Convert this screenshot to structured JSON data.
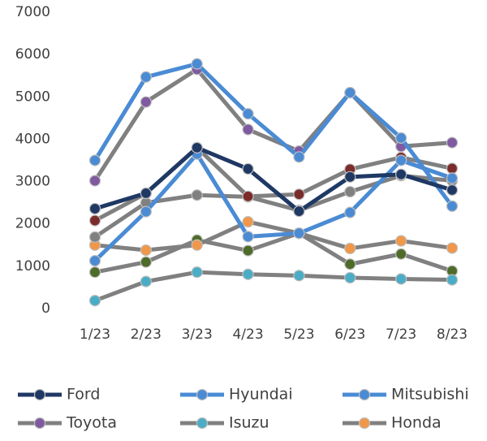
{
  "chart_data": {
    "type": "line",
    "categories": [
      "1/23",
      "2/23",
      "3/23",
      "4/23",
      "5/23",
      "6/23",
      "7/23",
      "8/23"
    ],
    "ylim": [
      0,
      7000
    ],
    "yticks": [
      0,
      1000,
      2000,
      3000,
      4000,
      5000,
      6000,
      7000
    ],
    "grid": false,
    "legend": "bottom",
    "series": [
      {
        "color": "#808080",
        "marker_color": "#4e6b2a",
        "values": [
          860,
          1100,
          1620,
          1370,
          1780,
          1050,
          1290,
          890
        ]
      },
      {
        "name": "Isuzu",
        "color": "#808080",
        "marker_color": "#4bacc6",
        "values": [
          190,
          640,
          860,
          810,
          780,
          730,
          700,
          680
        ]
      },
      {
        "name": "Honda",
        "color": "#808080",
        "marker_color": "#f0974a",
        "values": [
          1500,
          1380,
          1500,
          2050,
          1780,
          1420,
          1600,
          1430
        ]
      },
      {
        "color": "#808080",
        "marker_color": "#808080",
        "values": [
          1690,
          2500,
          2680,
          2640,
          2320,
          2760,
          3140,
          3020
        ]
      },
      {
        "color": "#808080",
        "marker_color": "#7b2c2a",
        "values": [
          2080,
          2720,
          3800,
          2650,
          2700,
          3290,
          3570,
          3310
        ]
      },
      {
        "name": "Toyota",
        "color": "#808080",
        "marker_color": "#7f5aa0",
        "values": [
          3020,
          4880,
          5650,
          4230,
          3720,
          5100,
          3830,
          3920
        ]
      },
      {
        "name": "Mitsubishi",
        "color": "#4a8bd4",
        "marker_color": "#4a8bd4",
        "values": [
          1130,
          2290,
          3650,
          1700,
          1780,
          2270,
          3500,
          3080
        ]
      },
      {
        "name": "Hyundai",
        "color": "#4a8bd4",
        "marker_color": "#4a8bd4",
        "values": [
          3500,
          5470,
          5780,
          4600,
          3580,
          5100,
          4030,
          2420
        ]
      },
      {
        "name": "Ford",
        "color": "#1f3864",
        "marker_color": "#1f3864",
        "values": [
          2360,
          2725,
          3800,
          3300,
          2300,
          3110,
          3170,
          2800
        ]
      }
    ]
  }
}
